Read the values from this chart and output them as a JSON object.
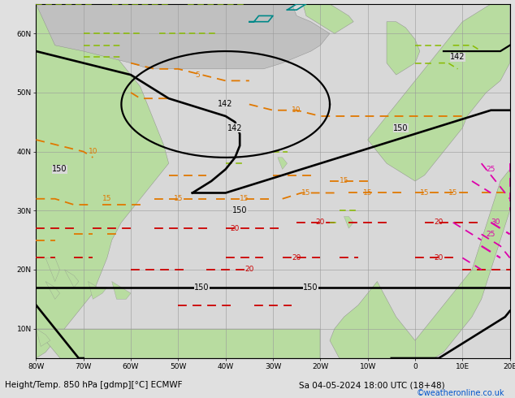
{
  "title_left": "Height/Temp. 850 hPa [gdmp][°C] ECMWF",
  "title_right": "Sa 04-05-2024 18:00 UTC (18+48)",
  "credit": "©weatheronline.co.uk",
  "bg_color": "#e0e0e0",
  "land_color_green": "#b8dca0",
  "land_color_gray": "#c0c0c0",
  "ocean_color": "#d8d8d8",
  "grid_color": "#999999",
  "c_black": "#000000",
  "c_orange": "#e07800",
  "c_red": "#cc0000",
  "c_magenta": "#dd00aa",
  "c_green": "#88bb00",
  "c_cyan": "#008888",
  "figsize": [
    6.34,
    4.9
  ],
  "dpi": 100,
  "xlim": [
    -80,
    20
  ],
  "ylim": [
    5,
    65
  ],
  "xticks": [
    -80,
    -70,
    -60,
    -50,
    -40,
    -30,
    -20,
    -10,
    0,
    10,
    20
  ],
  "xlabels": [
    "80W",
    "70W",
    "60W",
    "50W",
    "40W",
    "30W",
    "20W",
    "10W",
    "0",
    "10E",
    "20E"
  ],
  "yticks": [
    10,
    20,
    30,
    40,
    50,
    60
  ],
  "ylabels": [
    "10N",
    "20N",
    "30N",
    "40N",
    "50N",
    "60N"
  ]
}
